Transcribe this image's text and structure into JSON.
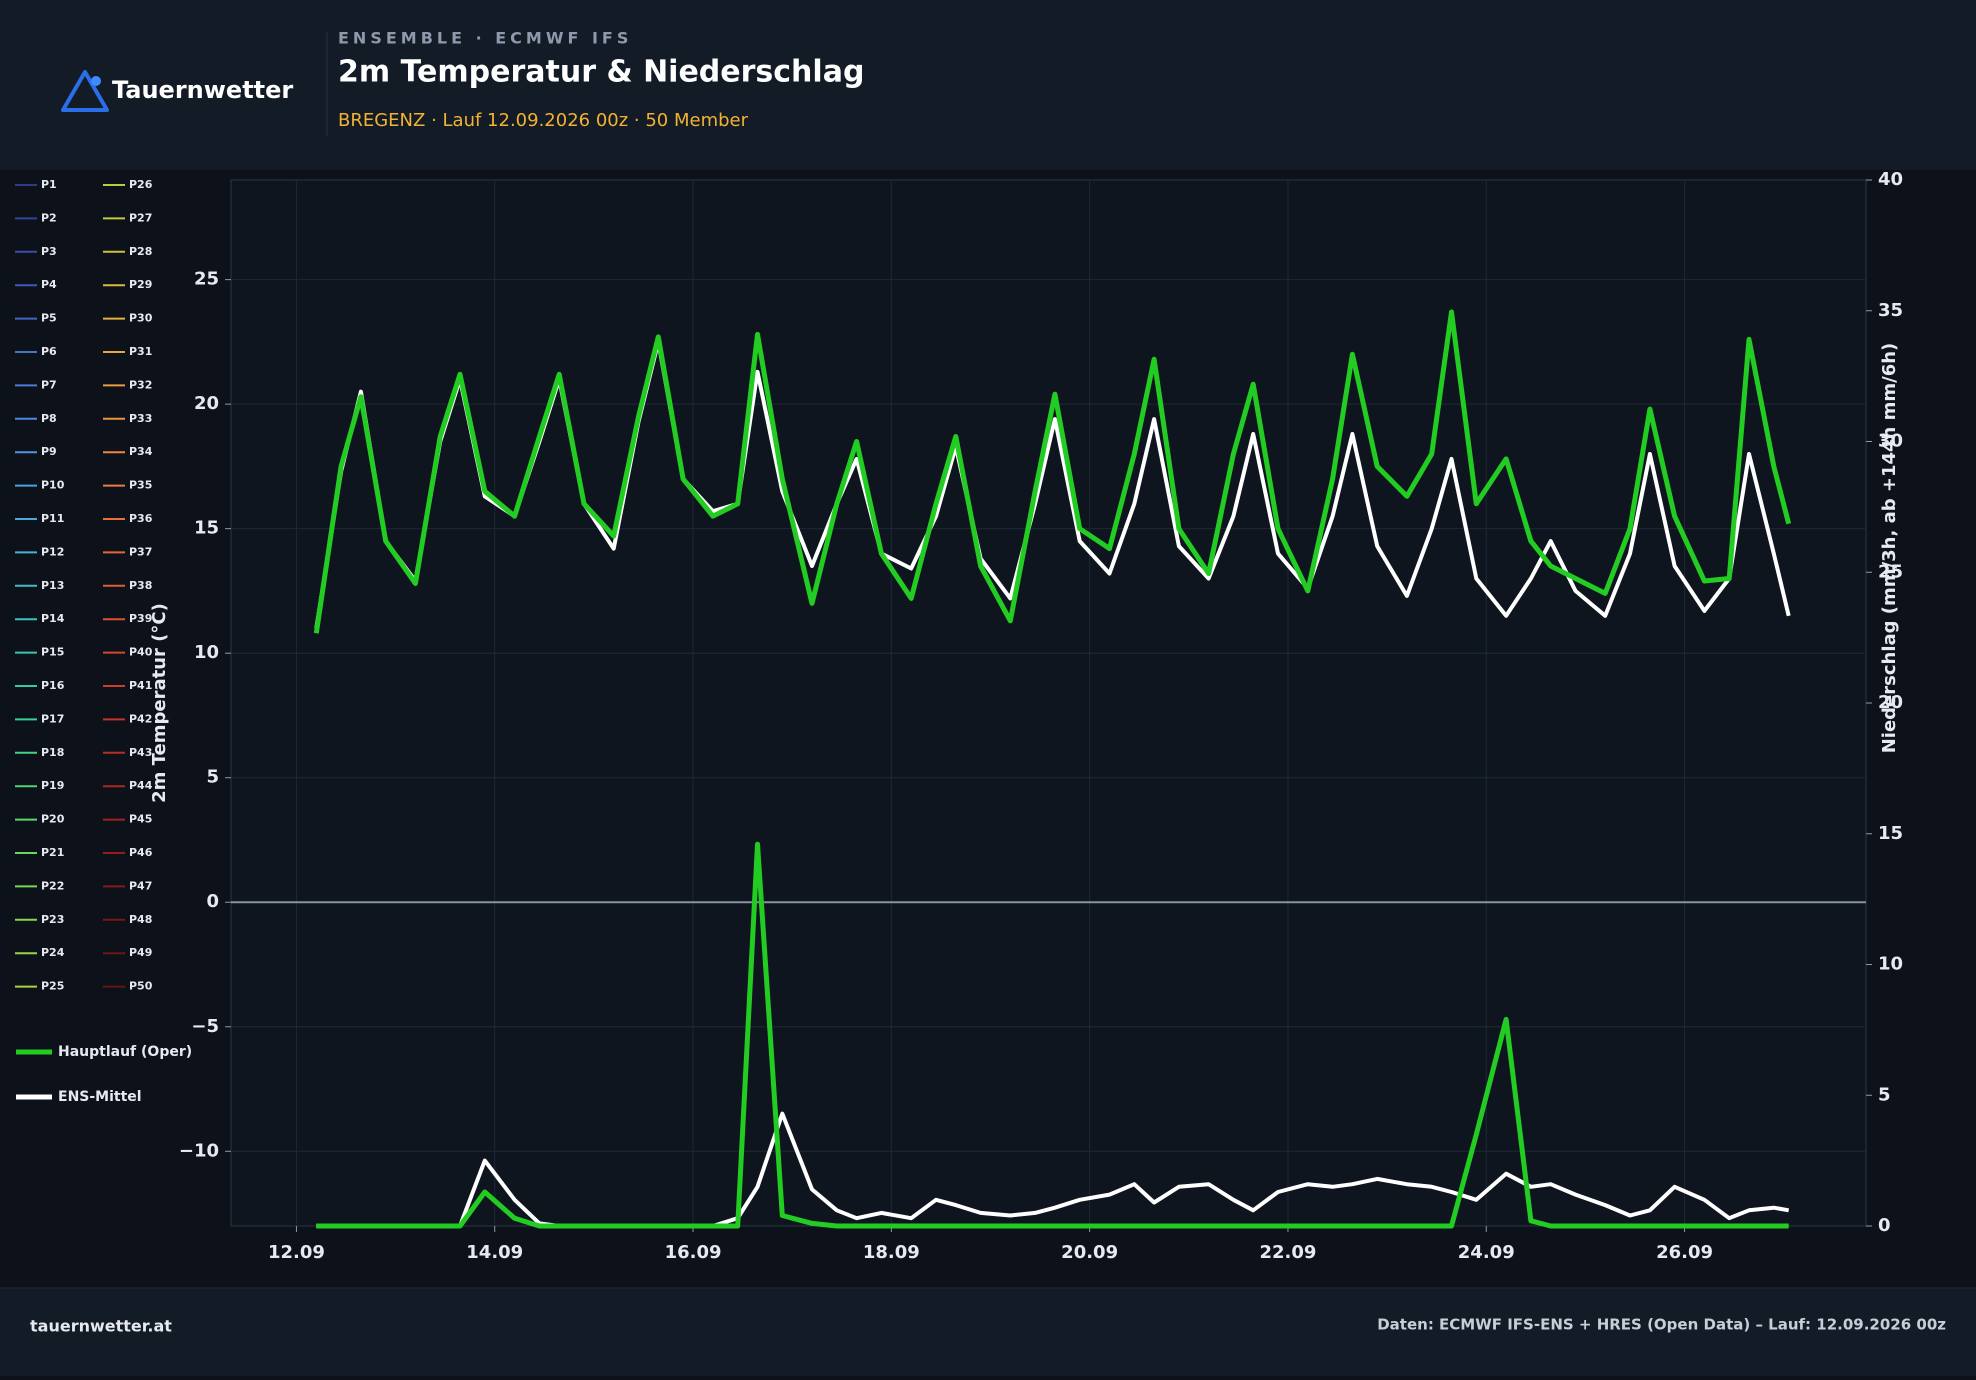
{
  "header": {
    "brand": "Tauernwetter",
    "kicker": "ENSEMBLE · ECMWF IFS",
    "title": "2m Temperatur & Niederschlag",
    "subtitle": "BREGENZ · Lauf 12.09.2026 00z · 50 Member"
  },
  "footer": {
    "left": "tauernwetter.at",
    "right": "Daten: ECMWF IFS-ENS + HRES (Open Data) – Lauf: 12.09.2026 00z"
  },
  "chart_data": {
    "type": "line",
    "ylabel": "2m Temperatur (°C)",
    "y2label": "Niederschlag (mm/3h, ab +144h mm/6h)",
    "xlim": [
      11.34,
      27.83
    ],
    "xticks": [
      {
        "value": 12,
        "label": "12.09"
      },
      {
        "value": 14,
        "label": "14.09"
      },
      {
        "value": 16,
        "label": "16.09"
      },
      {
        "value": 18,
        "label": "18.09"
      },
      {
        "value": 20,
        "label": "20.09"
      },
      {
        "value": 22,
        "label": "22.09"
      },
      {
        "value": 24,
        "label": "24.09"
      },
      {
        "value": 26,
        "label": "26.09"
      }
    ],
    "ylim": [
      -13,
      29
    ],
    "yticks": [
      {
        "value": -10,
        "label": "−10"
      },
      {
        "value": -5,
        "label": "−5"
      },
      0,
      5,
      10,
      15,
      20,
      25
    ],
    "y2lim": [
      0,
      40
    ],
    "y2ticks": [
      0,
      5,
      10,
      15,
      20,
      25,
      30,
      35,
      40
    ],
    "grid": true,
    "legend": "left",
    "x": [
      12.2,
      12.45,
      12.65,
      12.9,
      13.2,
      13.45,
      13.65,
      13.9,
      14.2,
      14.45,
      14.65,
      14.9,
      15.2,
      15.45,
      15.65,
      15.9,
      16.2,
      16.45,
      16.65,
      16.9,
      17.2,
      17.45,
      17.65,
      17.9,
      18.2,
      18.45,
      18.65,
      18.9,
      19.2,
      19.45,
      19.65,
      19.9,
      20.2,
      20.45,
      20.65,
      20.9,
      21.2,
      21.45,
      21.65,
      21.9,
      22.2,
      22.45,
      22.65,
      22.9,
      23.2,
      23.45,
      23.65,
      23.9,
      24.2,
      24.45,
      24.65,
      24.9,
      25.2,
      25.45,
      25.65,
      25.9,
      26.2,
      26.45,
      26.65,
      26.9,
      27.05
    ],
    "series": [
      {
        "name": "P1",
        "color": "#2e3a87"
      },
      {
        "name": "P2",
        "color": "#33429a"
      },
      {
        "name": "P3",
        "color": "#3a4daa"
      },
      {
        "name": "P4",
        "color": "#3f58b8"
      },
      {
        "name": "P5",
        "color": "#4464c4"
      },
      {
        "name": "P6",
        "color": "#4870cf"
      },
      {
        "name": "P7",
        "color": "#4b7cd8"
      },
      {
        "name": "P8",
        "color": "#4d88de"
      },
      {
        "name": "P9",
        "color": "#4e94e1"
      },
      {
        "name": "P10",
        "color": "#4d9fe0"
      },
      {
        "name": "P11",
        "color": "#4aa9dc"
      },
      {
        "name": "P12",
        "color": "#45b2d4"
      },
      {
        "name": "P13",
        "color": "#3fbacb"
      },
      {
        "name": "P14",
        "color": "#39c1bf"
      },
      {
        "name": "P15",
        "color": "#35c7b1"
      },
      {
        "name": "P16",
        "color": "#34cca2"
      },
      {
        "name": "P17",
        "color": "#38d093"
      },
      {
        "name": "P18",
        "color": "#40d384"
      },
      {
        "name": "P19",
        "color": "#4bd576"
      },
      {
        "name": "P20",
        "color": "#59d769"
      },
      {
        "name": "P21",
        "color": "#68d85d"
      },
      {
        "name": "P22",
        "color": "#78d853"
      },
      {
        "name": "P23",
        "color": "#89d74a"
      },
      {
        "name": "P24",
        "color": "#99d543"
      },
      {
        "name": "P25",
        "color": "#aad23e"
      },
      {
        "name": "P26",
        "color": "#b9ce3b"
      },
      {
        "name": "P27",
        "color": "#c6c93a"
      },
      {
        "name": "P28",
        "color": "#d2c23a"
      },
      {
        "name": "P29",
        "color": "#dcba3b"
      },
      {
        "name": "P30",
        "color": "#e3b13d"
      },
      {
        "name": "P31",
        "color": "#e8a73e"
      },
      {
        "name": "P32",
        "color": "#ec9c3f"
      },
      {
        "name": "P33",
        "color": "#ee9140"
      },
      {
        "name": "P34",
        "color": "#ef8640"
      },
      {
        "name": "P35",
        "color": "#ee7b3f"
      },
      {
        "name": "P36",
        "color": "#ec703d"
      },
      {
        "name": "P37",
        "color": "#e8653a"
      },
      {
        "name": "P38",
        "color": "#e35a36"
      },
      {
        "name": "P39",
        "color": "#dd5032"
      },
      {
        "name": "P40",
        "color": "#d5462e"
      },
      {
        "name": "P41",
        "color": "#cc3d2a"
      },
      {
        "name": "P42",
        "color": "#c23526"
      },
      {
        "name": "P43",
        "color": "#b72e23"
      },
      {
        "name": "P44",
        "color": "#ab2720"
      },
      {
        "name": "P45",
        "color": "#9f221d"
      },
      {
        "name": "P46",
        "color": "#931d1b"
      },
      {
        "name": "P47",
        "color": "#871a19"
      },
      {
        "name": "P48",
        "color": "#7b1717"
      },
      {
        "name": "P49",
        "color": "#701515"
      },
      {
        "name": "P50",
        "color": "#661414"
      },
      {
        "name": "Hauptlauf (Oper)",
        "color": "#22cc22",
        "values": [
          10.8,
          17.5,
          20.3,
          14.5,
          12.8,
          18.7,
          21.2,
          16.5,
          15.5,
          18.7,
          21.2,
          16,
          14.7,
          19.5,
          22.7,
          17,
          15.5,
          16,
          22.8,
          17,
          12,
          16,
          18.5,
          14,
          12.2,
          16,
          18.7,
          13.5,
          11.3,
          16.5,
          20.4,
          15,
          14.2,
          18,
          21.8,
          15,
          13.2,
          18,
          20.8,
          15,
          12.5,
          17,
          22,
          17.5,
          16.3,
          18,
          23.7,
          16,
          17.8,
          14.5,
          13.5,
          13,
          12.4,
          15,
          19.8,
          15.5,
          12.9,
          13,
          22.6,
          17.5,
          15.2
        ],
        "y2_values": [
          0,
          0,
          0,
          0,
          0,
          0,
          0,
          1.3,
          0.3,
          0,
          0,
          0,
          0,
          0,
          0,
          0,
          0,
          0,
          14.6,
          0.4,
          0.1,
          0,
          0,
          0,
          0,
          0,
          0,
          0,
          0,
          0,
          0,
          0,
          0,
          0,
          0,
          0,
          0,
          0,
          0,
          0,
          0,
          0,
          0,
          0,
          0,
          0,
          0,
          3.5,
          7.9,
          0.2,
          0,
          0,
          0,
          0,
          0,
          0,
          0,
          0,
          0,
          0,
          0
        ]
      },
      {
        "name": "ENS-Mittel",
        "color": "#ffffff",
        "values": [
          11,
          17.3,
          20.5,
          14.5,
          12.9,
          18.5,
          21,
          16.3,
          15.5,
          18.5,
          21,
          16,
          14.2,
          19.3,
          22.5,
          17,
          15.7,
          16,
          21.3,
          16.5,
          13.5,
          16,
          17.8,
          14,
          13.4,
          15.5,
          18.3,
          13.8,
          12.2,
          16,
          19.4,
          14.5,
          13.2,
          16,
          19.4,
          14.3,
          13,
          15.5,
          18.8,
          14,
          12.6,
          15.5,
          18.8,
          14.3,
          12.3,
          15,
          17.8,
          13,
          11.5,
          13,
          14.5,
          12.5,
          11.5,
          14,
          18,
          13.5,
          11.7,
          13,
          18,
          14,
          11.5
        ],
        "y2_values": [
          0,
          0,
          0,
          0,
          0,
          0,
          0,
          2.5,
          1,
          0.1,
          0,
          0,
          0,
          0,
          0,
          0,
          0,
          0.3,
          1.5,
          4.3,
          1.4,
          0.6,
          0.3,
          0.5,
          0.3,
          1,
          0.8,
          0.5,
          0.4,
          0.5,
          0.7,
          1,
          1.2,
          1.6,
          0.9,
          1.5,
          1.6,
          1,
          0.6,
          1.3,
          1.6,
          1.5,
          1.6,
          1.8,
          1.6,
          1.5,
          1.3,
          1,
          2,
          1.5,
          1.6,
          1.2,
          0.8,
          0.4,
          0.6,
          1.5,
          1,
          0.3,
          0.6,
          0.7,
          0.6
        ]
      }
    ]
  }
}
